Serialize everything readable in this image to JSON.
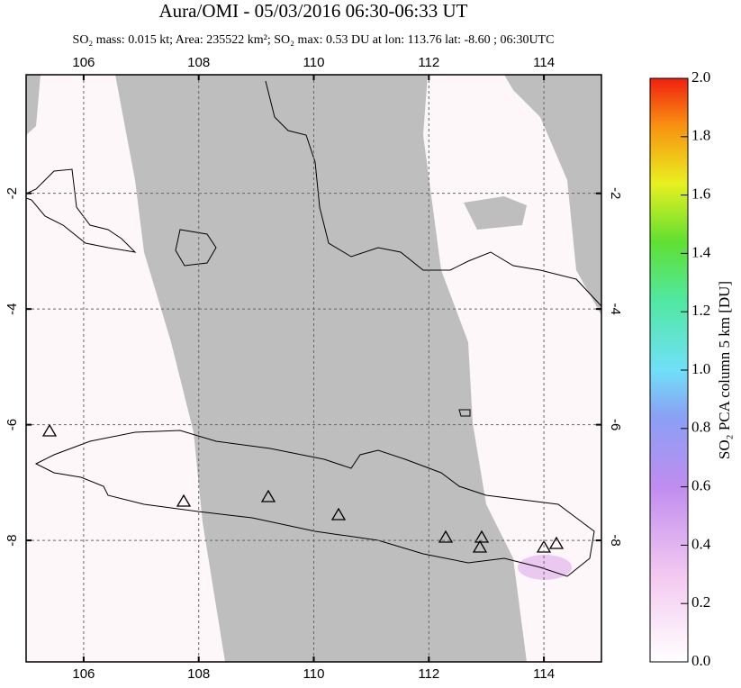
{
  "map": {
    "title": "Aura/OMI - 05/03/2016 06:30-06:33 UT",
    "subtitle": "SO₂ mass: 0.015 kt; Area: 235522 km²; SO₂ max: 0.53 DU at lon: 113.76 lat: -8.60 ; 06:30UTC",
    "xlim": [
      105,
      115
    ],
    "ylim": [
      -10.1,
      0.05
    ],
    "xticks": [
      106,
      108,
      110,
      112,
      114
    ],
    "yticks": [
      -2,
      -4,
      -6,
      -8
    ],
    "colorbar": {
      "label": "SO₂ PCA column 5 km [DU]",
      "lim": [
        0,
        2
      ],
      "ticks": [
        {
          "value": 0,
          "label": "0.0"
        },
        {
          "value": 0.2,
          "label": "0.2"
        },
        {
          "value": 0.4,
          "label": "0.4"
        },
        {
          "value": 0.6,
          "label": "0.6"
        },
        {
          "value": 0.8,
          "label": "0.8"
        },
        {
          "value": 1,
          "label": "1.0"
        },
        {
          "value": 1.2,
          "label": "1.2"
        },
        {
          "value": 1.4,
          "label": "1.4"
        },
        {
          "value": 1.6,
          "label": "1.6"
        },
        {
          "value": 1.8,
          "label": "1.8"
        },
        {
          "value": 2,
          "label": "2.0"
        }
      ]
    }
  }
}
